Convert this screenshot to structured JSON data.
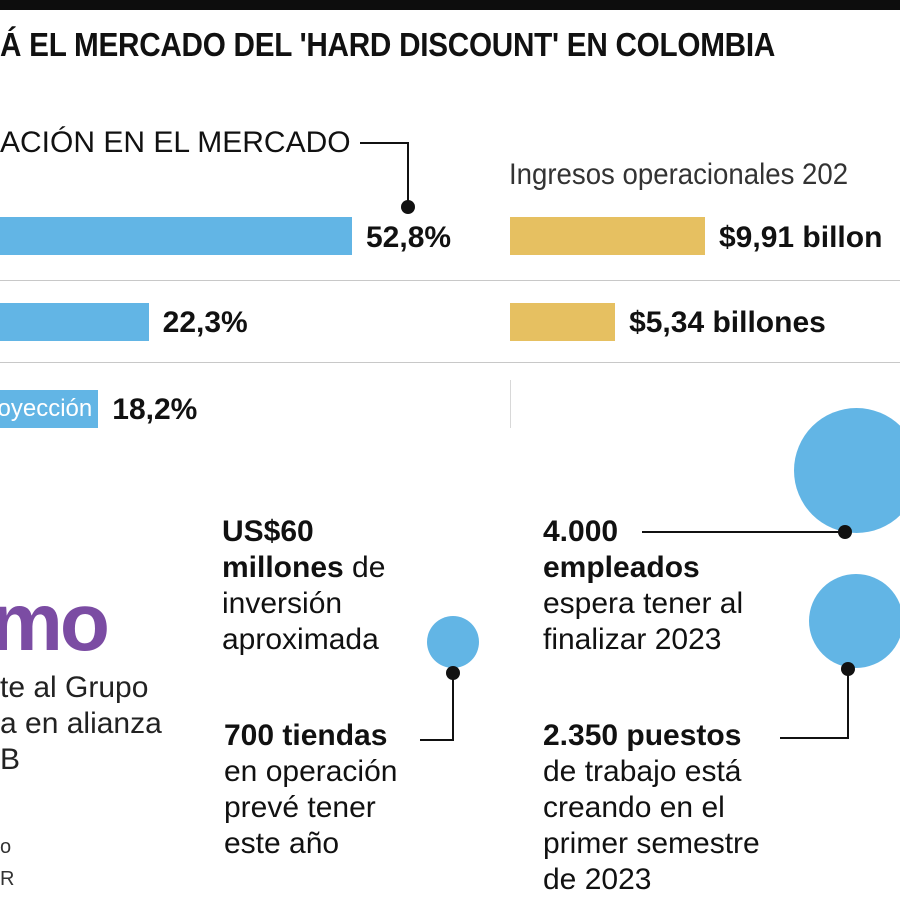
{
  "header": {
    "title": "Á EL MERCADO DEL 'HARD DISCOUNT' EN COLOMBIA"
  },
  "market_share": {
    "title": "ACIÓN EN EL MERCADO",
    "bars": [
      {
        "label": "",
        "value": 52.8,
        "display": "52,8%"
      },
      {
        "label": "",
        "value": 22.3,
        "display": "22,3%"
      },
      {
        "label": "oyección",
        "value": 18.2,
        "display": "18,2%"
      }
    ]
  },
  "revenue": {
    "title": "Ingresos operacionales 202",
    "bars": [
      {
        "value": 9.91,
        "display": "$9,91 billon"
      },
      {
        "value": 5.34,
        "display": "$5,34 billones"
      }
    ]
  },
  "chart_data": [
    {
      "type": "bar",
      "title": "ACIÓN EN EL MERCADO",
      "categories": [
        "",
        "",
        "oyección"
      ],
      "values": [
        52.8,
        22.3,
        18.2
      ]
    },
    {
      "type": "bar",
      "title": "Ingresos operacionales 202",
      "categories": [
        "",
        ""
      ],
      "values": [
        9.91,
        5.34
      ]
    }
  ],
  "logo": {
    "text": "mo"
  },
  "company_note": {
    "lines": [
      "te al Grupo",
      "a en alianza",
      "B"
    ]
  },
  "facts": {
    "investment": {
      "bold1": "US$60",
      "bold2": "millones",
      "rest2": " de",
      "line3": "inversión",
      "line4": "aproximada"
    },
    "stores": {
      "bold": "700 tiendas",
      "line2": "en operación",
      "line3": "prevé tener",
      "line4": "este año"
    },
    "employees": {
      "bold1": "4.000",
      "bold2": "empleados",
      "line3": "espera tener al",
      "line4": "finalizar 2023"
    },
    "jobs": {
      "bold": "2.350 puestos",
      "line2": "de trabajo está",
      "line3": "creando en el",
      "line4": "primer semestre",
      "line5": "de 2023"
    }
  },
  "credits": {
    "line1": "o",
    "line2": "R"
  },
  "colors": {
    "share_bar": "#62b5e5",
    "revenue_bar": "#e6c061",
    "logo": "#7b4ca3"
  }
}
